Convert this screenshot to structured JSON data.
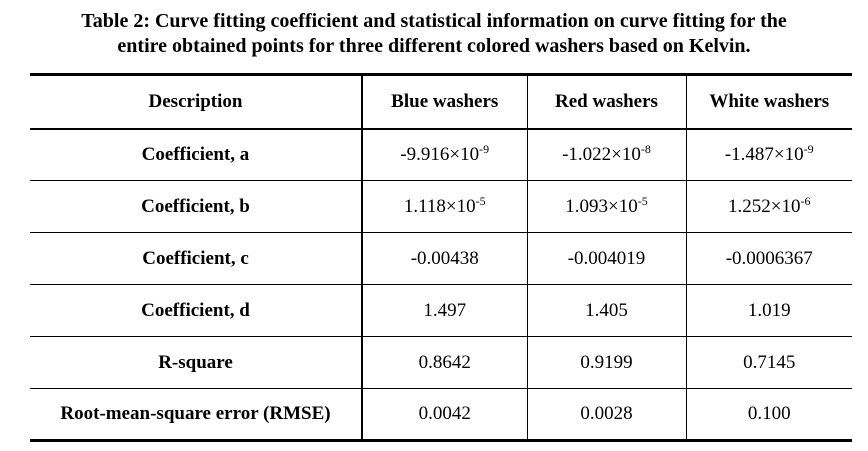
{
  "title": [
    "Table 2: Curve fitting coefficient and statistical information on curve fitting for the",
    "entire obtained points for three different colored washers based on Kelvin."
  ],
  "table": {
    "header": [
      "Description",
      "Blue washers",
      "Red washers",
      "White washers"
    ],
    "rows": [
      [
        "Coefficient, a",
        {
          "base": "-9.916×10",
          "exp": "-9"
        },
        {
          "base": "-1.022×10",
          "exp": "-8"
        },
        {
          "base": "-1.487×10",
          "exp": "-9"
        }
      ],
      [
        "Coefficient, b",
        {
          "base": "1.118×10",
          "exp": "-5"
        },
        {
          "base": "1.093×10",
          "exp": "-5"
        },
        {
          "base": "1.252×10",
          "exp": "-6"
        }
      ],
      [
        "Coefficient, c",
        "-0.00438",
        "-0.004019",
        "-0.0006367"
      ],
      [
        "Coefficient, d",
        "1.497",
        "1.405",
        "1.019"
      ],
      [
        "R-square",
        "0.8642",
        "0.9199",
        "0.7145"
      ],
      [
        "Root-mean-square error (RMSE)",
        "0.0042",
        "0.0028",
        "0.100"
      ]
    ]
  }
}
